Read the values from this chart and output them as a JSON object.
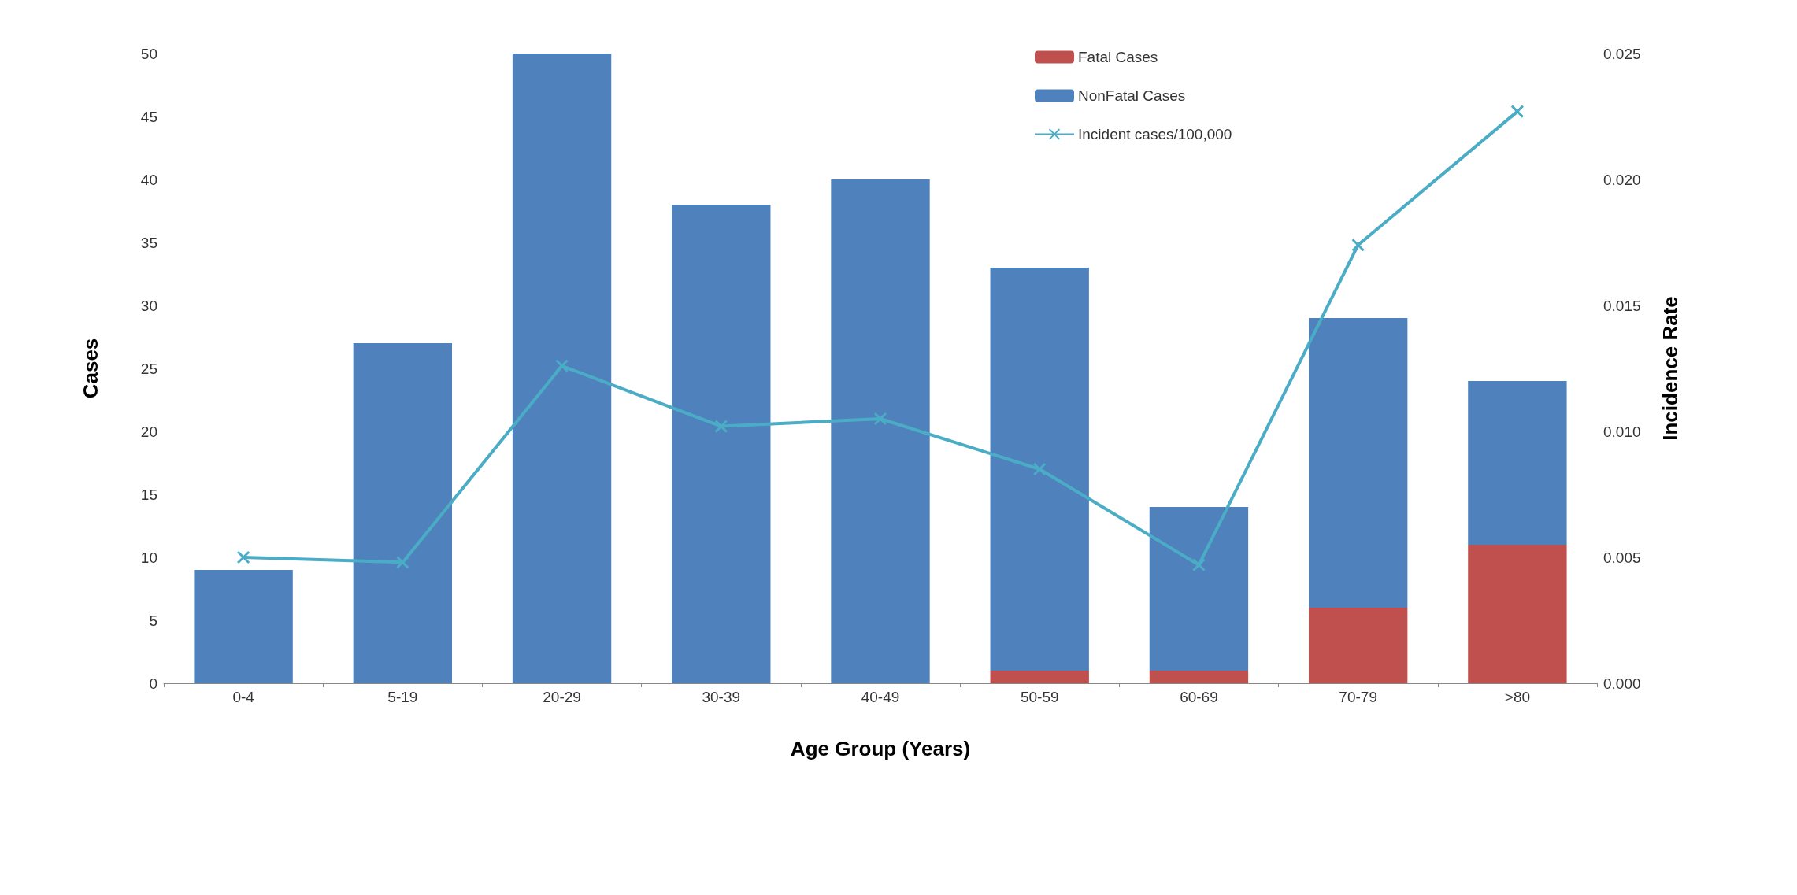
{
  "chart_data": {
    "type": "bar",
    "stacked": true,
    "xlabel": "Age Group (Years)",
    "ylabel": "Cases",
    "y2label": "Incidence Rate",
    "categories": [
      "0-4",
      "5-19",
      "20-29",
      "30-39",
      "40-49",
      "50-59",
      "60-69",
      "70-79",
      ">80"
    ],
    "series": [
      {
        "name": "Fatal Cases",
        "color": "#c0504d",
        "values": [
          0,
          0,
          0,
          0,
          0,
          1,
          1,
          6,
          11
        ]
      },
      {
        "name": "NonFatal Cases",
        "color": "#4f81bd",
        "values": [
          9,
          27,
          50,
          38,
          40,
          32,
          13,
          23,
          13
        ]
      },
      {
        "name": "Incident cases/100,000",
        "type": "line",
        "axis": "y2",
        "color": "#4bacc6",
        "marker": "cross",
        "values": [
          0.005,
          0.0048,
          0.0126,
          0.0102,
          0.0105,
          0.0085,
          0.0047,
          0.0174,
          0.0227
        ]
      }
    ],
    "ylim": [
      0,
      50
    ],
    "yticks": [
      0,
      5,
      10,
      15,
      20,
      25,
      30,
      35,
      40,
      45,
      50
    ],
    "y2lim": [
      0,
      0.025
    ],
    "y2ticks": [
      {
        "value": 0,
        "label": "0.000"
      },
      {
        "value": 0.005,
        "label": "0.005"
      },
      {
        "value": 0.01,
        "label": "0.010"
      },
      {
        "value": 0.015,
        "label": "0.015"
      },
      {
        "value": 0.02,
        "label": "0.020"
      },
      {
        "value": 0.025,
        "label": "0.025"
      }
    ],
    "grid": false,
    "legend": "top right"
  }
}
